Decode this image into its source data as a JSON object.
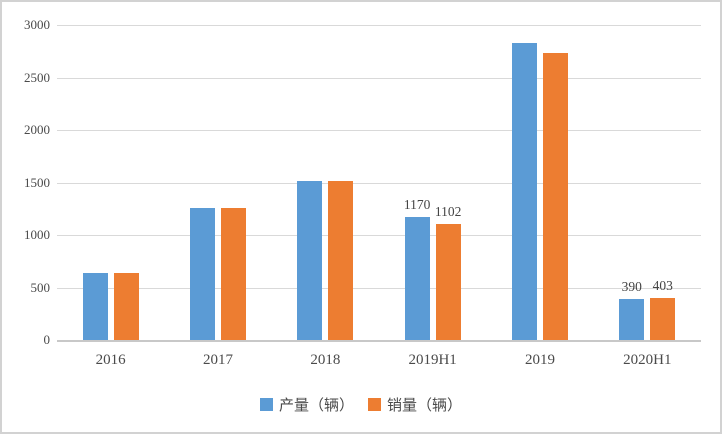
{
  "chart_data": {
    "type": "bar",
    "title": "",
    "categories": [
      "2016",
      "2017",
      "2018",
      "2019H1",
      "2019",
      "2020H1"
    ],
    "series": [
      {
        "name": "产量（辆）",
        "color": "#5B9BD5",
        "values": [
          640,
          1260,
          1515,
          1170,
          2825,
          390
        ],
        "data_labels": [
          "",
          "",
          "",
          "1170",
          "",
          "390"
        ]
      },
      {
        "name": "销量（辆）",
        "color": "#ED7D31",
        "values": [
          640,
          1255,
          1515,
          1102,
          2730,
          403
        ],
        "data_labels": [
          "",
          "",
          "",
          "1102",
          "",
          "403"
        ]
      }
    ],
    "xlabel": "",
    "ylabel": "",
    "ylim": [
      0,
      3000
    ],
    "yticks": [
      0,
      500,
      1000,
      1500,
      2000,
      2500,
      3000
    ],
    "grid": "horizontal",
    "gridline_color": "#d9d9d9",
    "axis_text_color": "#4a4a4a",
    "legend_position": "bottom-center"
  }
}
